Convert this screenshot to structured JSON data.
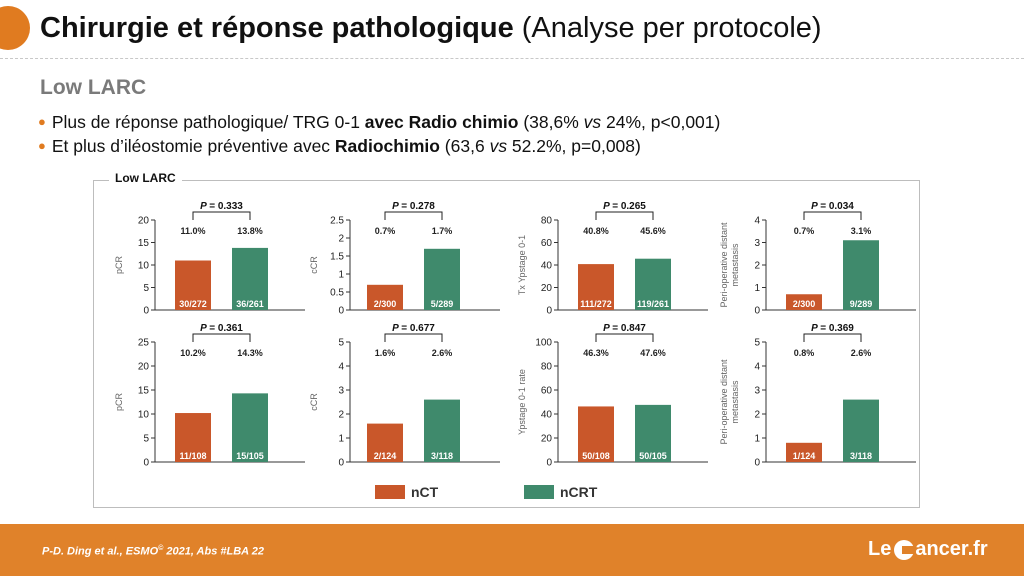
{
  "title": {
    "bold": "Chirurgie et réponse pathologique",
    "normal": "(Analyse per protocole)"
  },
  "subtitle": "Low LARC",
  "bullets": [
    {
      "p1": "Plus de réponse pathologique/ TRG 0-1 ",
      "b1": "avec Radio chimio",
      "p2": " (38,6% ",
      "i1": "vs",
      "p3": " 24%, p<0,001)"
    },
    {
      "p1": "Et plus d’iléostomie préventive avec ",
      "b1": "Radiochimio",
      "p2": " (63,6 ",
      "i1": "vs",
      "p3": " 52.2%, p=0,008)"
    }
  ],
  "panel_title": "Low LARC",
  "legend": [
    {
      "label": "nCT",
      "color": "#c9572a"
    },
    {
      "label": "nCRT",
      "color": "#3f8a6c"
    }
  ],
  "footer": {
    "authors": "P-D. Ding et al.,  ESMO",
    "reg": "©",
    "rest": " 2021, Abs #LBA 22",
    "logo_left": "Le",
    "logo_right": "ancer.fr"
  },
  "chart_data": [
    {
      "type": "bar",
      "ylabel": "pCR",
      "ylim": [
        0,
        20
      ],
      "yticks": [
        0,
        5,
        10,
        15,
        20
      ],
      "categories": [
        "nCT",
        "nCRT"
      ],
      "values": [
        11.0,
        13.8
      ],
      "pct_labels": [
        "11.0%",
        "13.8%"
      ],
      "count_labels": [
        "30/272",
        "36/261"
      ],
      "p_label": "P",
      "p_value": "= 0.333"
    },
    {
      "type": "bar",
      "ylabel": "cCR",
      "ylim": [
        0,
        2.5
      ],
      "yticks": [
        0,
        0.5,
        1,
        1.5,
        2,
        2.5
      ],
      "categories": [
        "nCT",
        "nCRT"
      ],
      "values": [
        0.7,
        1.7
      ],
      "pct_labels": [
        "0.7%",
        "1.7%"
      ],
      "count_labels": [
        "2/300",
        "5/289"
      ],
      "p_label": "P",
      "p_value": "= 0.278"
    },
    {
      "type": "bar",
      "ylabel": "Tx Ypstage 0-1",
      "ylim": [
        0,
        80
      ],
      "yticks": [
        0,
        20,
        40,
        60,
        80
      ],
      "categories": [
        "nCT",
        "nCRT"
      ],
      "values": [
        40.8,
        45.6
      ],
      "pct_labels": [
        "40.8%",
        "45.6%"
      ],
      "count_labels": [
        "111/272",
        "119/261"
      ],
      "p_label": "P",
      "p_value": "= 0.265"
    },
    {
      "type": "bar",
      "ylabel": "Peri-operative distant metastasis",
      "ylim": [
        0,
        4
      ],
      "yticks": [
        0,
        1,
        2,
        3,
        4
      ],
      "categories": [
        "nCT",
        "nCRT"
      ],
      "values": [
        0.7,
        3.1
      ],
      "pct_labels": [
        "0.7%",
        "3.1%"
      ],
      "count_labels": [
        "2/300",
        "9/289"
      ],
      "p_label": "P",
      "p_value": "= 0.034"
    },
    {
      "type": "bar",
      "ylabel": "pCR",
      "ylim": [
        0,
        25
      ],
      "yticks": [
        0,
        5,
        10,
        15,
        20,
        25
      ],
      "categories": [
        "nCT",
        "nCRT"
      ],
      "values": [
        10.2,
        14.3
      ],
      "pct_labels": [
        "10.2%",
        "14.3%"
      ],
      "count_labels": [
        "11/108",
        "15/105"
      ],
      "p_label": "P",
      "p_value": "= 0.361"
    },
    {
      "type": "bar",
      "ylabel": "cCR",
      "ylim": [
        0,
        5
      ],
      "yticks": [
        0,
        1,
        2,
        3,
        4,
        5
      ],
      "categories": [
        "nCT",
        "nCRT"
      ],
      "values": [
        1.6,
        2.6
      ],
      "pct_labels": [
        "1.6%",
        "2.6%"
      ],
      "count_labels": [
        "2/124",
        "3/118"
      ],
      "p_label": "P",
      "p_value": "= 0.677"
    },
    {
      "type": "bar",
      "ylabel": "Ypstage 0-1 rate",
      "ylim": [
        0,
        100
      ],
      "yticks": [
        0,
        20,
        40,
        60,
        80,
        100
      ],
      "categories": [
        "nCT",
        "nCRT"
      ],
      "values": [
        46.3,
        47.6
      ],
      "pct_labels": [
        "46.3%",
        "47.6%"
      ],
      "count_labels": [
        "50/108",
        "50/105"
      ],
      "p_label": "P",
      "p_value": "= 0.847"
    },
    {
      "type": "bar",
      "ylabel": "Peri-operative distant metastasis",
      "ylim": [
        0,
        5
      ],
      "yticks": [
        0,
        1,
        2,
        3,
        4,
        5
      ],
      "categories": [
        "nCT",
        "nCRT"
      ],
      "values": [
        0.8,
        2.6
      ],
      "pct_labels": [
        "0.8%",
        "2.6%"
      ],
      "count_labels": [
        "1/124",
        "3/118"
      ],
      "p_label": "P",
      "p_value": "= 0.369"
    }
  ]
}
